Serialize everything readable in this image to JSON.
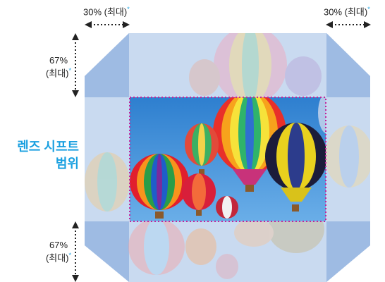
{
  "labels": {
    "horizontal_left": "30% (최대)",
    "horizontal_right": "30% (최대)",
    "vertical_top_pct": "67%",
    "vertical_top_max": "(최대)",
    "vertical_bottom_pct": "67%",
    "vertical_bottom_max": "(최대)",
    "asterisk": "*",
    "lens_shift_line1": "렌즈 시프트",
    "lens_shift_line2": "범위"
  },
  "colors": {
    "accent": "#1aa0e0",
    "frame_border": "#c4239a",
    "sky": "#3d8fd8",
    "faded_band": "#a9c4e6",
    "corner_panel": "#8fb0df"
  }
}
